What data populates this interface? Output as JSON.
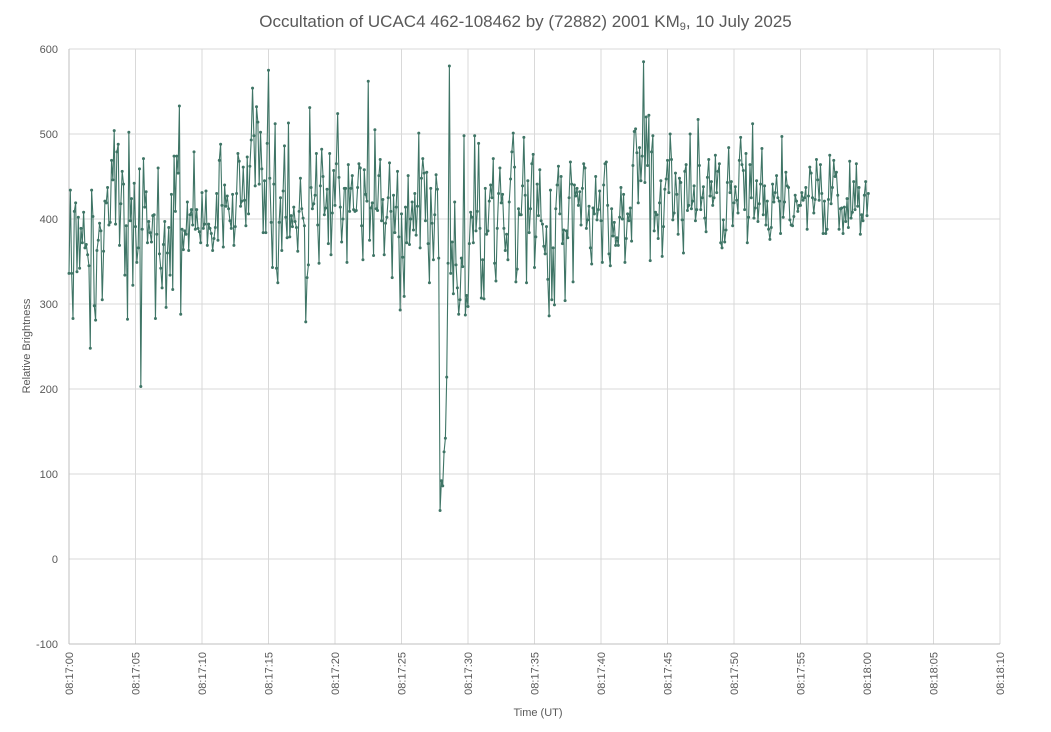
{
  "chart_data": {
    "type": "line",
    "title": "Occultation of UCAC4 462-108462 by (72882) 2001 KM",
    "title_subscript": "9",
    "title_suffix": ", 10 July 2025",
    "xlabel": "Time (UT)",
    "ylabel": "Relative Brightness",
    "ylim": [
      -100,
      600
    ],
    "y_ticks": [
      600,
      500,
      400,
      300,
      200,
      100,
      0,
      -100
    ],
    "xlim": [
      "08:17:00",
      "08:18:10"
    ],
    "x_ticks": [
      "08:17:00",
      "08:17:05",
      "08:17:10",
      "08:17:15",
      "08:17:20",
      "08:17:25",
      "08:17:30",
      "08:17:35",
      "08:17:40",
      "08:17:45",
      "08:17:50",
      "08:17:55",
      "08:18:00",
      "08:18:05",
      "08:18:10"
    ],
    "grid": true,
    "line_color": "#3f7566",
    "series": [
      {
        "sample_interval_s": 0.1,
        "start_time": "08:17:00",
        "values": [
          336,
          434,
          336,
          283,
          409,
          419,
          338,
          402,
          342,
          389,
          372,
          408,
          366,
          370,
          358,
          345,
          248,
          434,
          403,
          298,
          281,
          363,
          375,
          395,
          386,
          305,
          362,
          421,
          419,
          437,
          393,
          396,
          469,
          446,
          504,
          394,
          479,
          488,
          369,
          418,
          456,
          441,
          334,
          392,
          282,
          502,
          398,
          424,
          322,
          442,
          391,
          349,
          366,
          459,
          203,
          388,
          471,
          414,
          432,
          372,
          397,
          384,
          373,
          404,
          405,
          283,
          382,
          460,
          359,
          342,
          319,
          370,
          397,
          296,
          360,
          390,
          334,
          429,
          317,
          474,
          409,
          474,
          454,
          533,
          288,
          388,
          364,
          386,
          382,
          420,
          363,
          405,
          411,
          393,
          479,
          388,
          411,
          389,
          385,
          372,
          431,
          389,
          394,
          433,
          369,
          394,
          389,
          383,
          363,
          377,
          390,
          430,
          375,
          469,
          488,
          416,
          367,
          440,
          415,
          427,
          412,
          398,
          389,
          429,
          369,
          391,
          430,
          477,
          468,
          415,
          421,
          461,
          422,
          392,
          473,
          406,
          462,
          493,
          554,
          498,
          439,
          532,
          514,
          441,
          502,
          459,
          384,
          445,
          384,
          489,
          575,
          448,
          396,
          343,
          441,
          512,
          342,
          325,
          396,
          425,
          363,
          433,
          486,
          402,
          378,
          513,
          379,
          404,
          391,
          414,
          397,
          390,
          362,
          409,
          448,
          412,
          401,
          392,
          279,
          331,
          346,
          531,
          437,
          412,
          418,
          428,
          477,
          393,
          348,
          439,
          482,
          450,
          405,
          413,
          435,
          371,
          477,
          358,
          407,
          457,
          416,
          465,
          524,
          449,
          414,
          373,
          400,
          436,
          436,
          349,
          464,
          409,
          436,
          451,
          411,
          409,
          410,
          437,
          465,
          460,
          392,
          352,
          458,
          429,
          421,
          562,
          375,
          413,
          419,
          357,
          505,
          412,
          410,
          451,
          470,
          398,
          423,
          358,
          395,
          402,
          425,
          466,
          409,
          331,
          428,
          384,
          414,
          456,
          379,
          293,
          406,
          355,
          309,
          414,
          372,
          451,
          370,
          400,
          420,
          387,
          430,
          381,
          415,
          501,
          366,
          448,
          471,
          454,
          398,
          455,
          371,
          325,
          436,
          395,
          352,
          405,
          452,
          435,
          354,
          57,
          92,
          86,
          126,
          142,
          214,
          348,
          580,
          336,
          373,
          312,
          420,
          346,
          319,
          288,
          305,
          354,
          344,
          498,
          287,
          310,
          297,
          371,
          408,
          402,
          372,
          498,
          386,
          409,
          489,
          389,
          307,
          352,
          306,
          436,
          382,
          386,
          421,
          440,
          425,
          471,
          348,
          327,
          389,
          430,
          460,
          419,
          429,
          389,
          363,
          382,
          352,
          420,
          447,
          479,
          501,
          461,
          326,
          341,
          412,
          405,
          405,
          439,
          496,
          428,
          325,
          445,
          384,
          412,
          465,
          476,
          343,
          379,
          441,
          404,
          458,
          398,
          394,
          368,
          359,
          391,
          329,
          286,
          434,
          305,
          366,
          299,
          412,
          440,
          462,
          406,
          450,
          371,
          387,
          304,
          386,
          378,
          425,
          467,
          441,
          326,
          440,
          427,
          436,
          416,
          432,
          393,
          436,
          465,
          460,
          389,
          399,
          415,
          366,
          347,
          413,
          406,
          450,
          399,
          411,
          433,
          398,
          349,
          440,
          465,
          467,
          416,
          359,
          345,
          412,
          380,
          396,
          369,
          378,
          369,
          402,
          437,
          400,
          429,
          349,
          377,
          406,
          398,
          413,
          374,
          463,
          503,
          506,
          478,
          419,
          484,
          445,
          474,
          585,
          443,
          520,
          463,
          522,
          351,
          479,
          498,
          386,
          408,
          405,
          377,
          419,
          445,
          356,
          391,
          435,
          447,
          469,
          431,
          500,
          470,
          399,
          407,
          454,
          429,
          382,
          448,
          443,
          399,
          360,
          456,
          464,
          410,
          416,
          500,
          412,
          421,
          439,
          398,
          411,
          517,
          463,
          411,
          425,
          438,
          401,
          385,
          449,
          470,
          427,
          444,
          416,
          425,
          475,
          431,
          456,
          465,
          372,
          366,
          399,
          373,
          387,
          443,
          484,
          431,
          444,
          392,
          419,
          438,
          422,
          407,
          469,
          496,
          464,
          457,
          411,
          477,
          372,
          402,
          464,
          425,
          512,
          401,
          413,
          445,
          397,
          418,
          441,
          483,
          405,
          439,
          393,
          421,
          388,
          376,
          390,
          441,
          420,
          431,
          451,
          425,
          421,
          383,
          497,
          402,
          420,
          455,
          439,
          437,
          399,
          393,
          392,
          403,
          428,
          421,
          409,
          416,
          416,
          431,
          422,
          425,
          437,
          388,
          427,
          461,
          454,
          425,
          407,
          423,
          470,
          446,
          422,
          464,
          430,
          383,
          421,
          383,
          388,
          423,
          475,
          418,
          437,
          469,
          450,
          455,
          428,
          388,
          412,
          413,
          383,
          414,
          397,
          424,
          390,
          468,
          401,
          408,
          444,
          411,
          465,
          415,
          437,
          382,
          405,
          398,
          428,
          444,
          404,
          430
        ]
      }
    ]
  }
}
